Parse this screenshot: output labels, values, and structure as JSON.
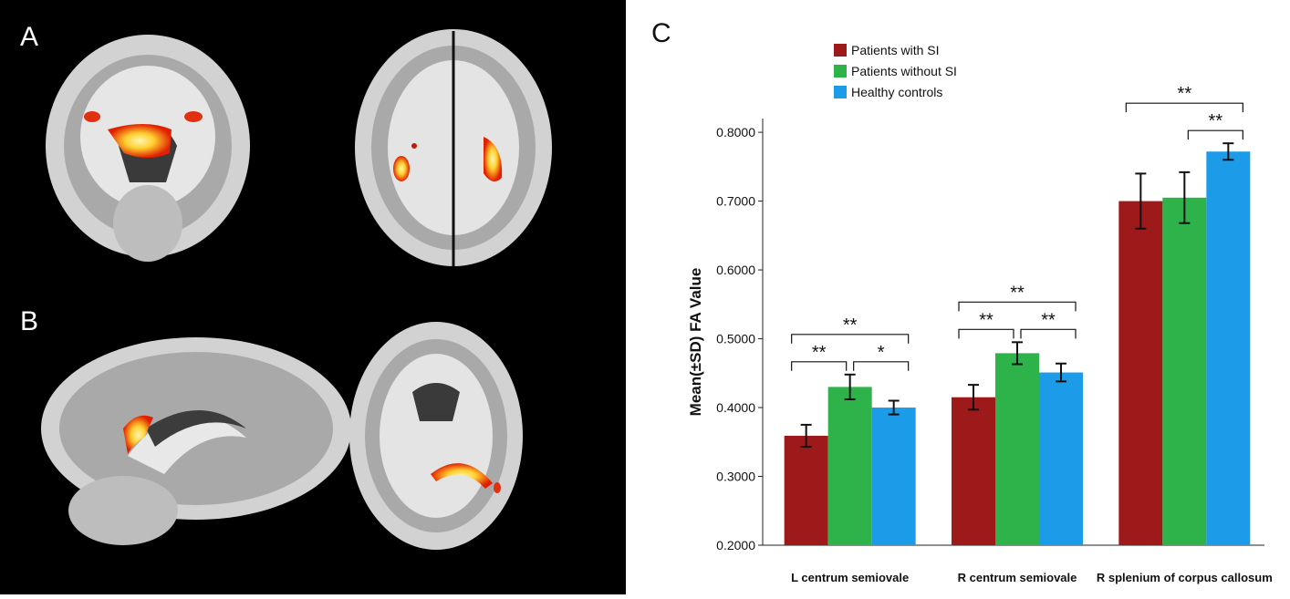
{
  "figure": {
    "panel_labels": {
      "a": "A",
      "b": "B",
      "c": "C"
    },
    "colors": {
      "background": "#000000",
      "brain_gray": "#c8c8c8",
      "activation_red": "#e02000",
      "activation_yellow": "#ffe85a"
    }
  },
  "chart_data": {
    "type": "bar",
    "title": "",
    "xlabel": "",
    "ylabel": "Mean(±SD) FA Value",
    "ylim": [
      0.2,
      0.82
    ],
    "yticks": [
      "0.2000",
      "0.3000",
      "0.4000",
      "0.5000",
      "0.6000",
      "0.7000",
      "0.8000"
    ],
    "ytick_values": [
      0.2,
      0.3,
      0.4,
      0.5,
      0.6,
      0.7,
      0.8
    ],
    "grid": false,
    "legend_position": "top-left",
    "categories": [
      "L centrum semiovale",
      "R centrum semiovale",
      "R splenium of corpus callosum"
    ],
    "series": [
      {
        "name": "Patients with SI",
        "color": "#9e1a1a",
        "values": [
          0.359,
          0.415,
          0.7
        ],
        "errors": [
          0.016,
          0.018,
          0.04
        ]
      },
      {
        "name": "Patients without  SI",
        "color": "#2db34a",
        "values": [
          0.43,
          0.479,
          0.705
        ],
        "errors": [
          0.018,
          0.016,
          0.037
        ]
      },
      {
        "name": "Healthy controls",
        "color": "#1b9be8",
        "values": [
          0.4,
          0.451,
          0.772
        ],
        "errors": [
          0.01,
          0.013,
          0.012
        ]
      }
    ],
    "significance": [
      {
        "category": 0,
        "from": 0,
        "to": 1,
        "label": "**",
        "level": 1
      },
      {
        "category": 0,
        "from": 1,
        "to": 2,
        "label": "*",
        "level": 1
      },
      {
        "category": 0,
        "from": 0,
        "to": 2,
        "label": "**",
        "level": 2
      },
      {
        "category": 1,
        "from": 0,
        "to": 1,
        "label": "**",
        "level": 1
      },
      {
        "category": 1,
        "from": 1,
        "to": 2,
        "label": "**",
        "level": 1
      },
      {
        "category": 1,
        "from": 0,
        "to": 2,
        "label": "**",
        "level": 2
      },
      {
        "category": 2,
        "from": 1,
        "to": 2,
        "label": "**",
        "level": 1
      },
      {
        "category": 2,
        "from": 0,
        "to": 2,
        "label": "**",
        "level": 2
      }
    ]
  }
}
